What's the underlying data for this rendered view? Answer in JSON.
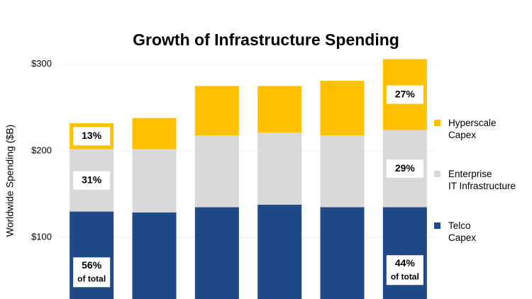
{
  "chart_data": {
    "type": "stacked_bar",
    "title": "Growth of Infrastructure Spending",
    "y_label": "Worldwide Spending ($B)",
    "categories": [
      null,
      null,
      null,
      null,
      null,
      null
    ],
    "series": [
      {
        "name": "Telco\nCapex",
        "color": "#1f4a87",
        "values": [
          130,
          129,
          135,
          138,
          135,
          135
        ],
        "share_labels": [
          "56%",
          null,
          null,
          null,
          null,
          "44%"
        ],
        "share_notes": [
          "of total",
          null,
          null,
          null,
          null,
          "of total"
        ]
      },
      {
        "name": "Enterprise\nIT Infrastructure",
        "color": "#d9d9d9",
        "values": [
          72,
          73,
          83,
          83,
          83,
          89
        ],
        "share_labels": [
          "31%",
          null,
          null,
          null,
          null,
          "29%"
        ]
      },
      {
        "name": "Hyperscale\nCapex",
        "color": "#ffc000",
        "values": [
          30,
          36,
          57,
          54,
          63,
          82
        ],
        "share_labels": [
          "13%",
          null,
          null,
          null,
          null,
          "27%"
        ]
      }
    ],
    "ylim": [
      29,
      317
    ],
    "yticks": [
      {
        "value": 100,
        "label": "$100"
      },
      {
        "value": 200,
        "label": "$200"
      },
      {
        "value": 300,
        "label": "$300"
      }
    ],
    "grid": true
  }
}
